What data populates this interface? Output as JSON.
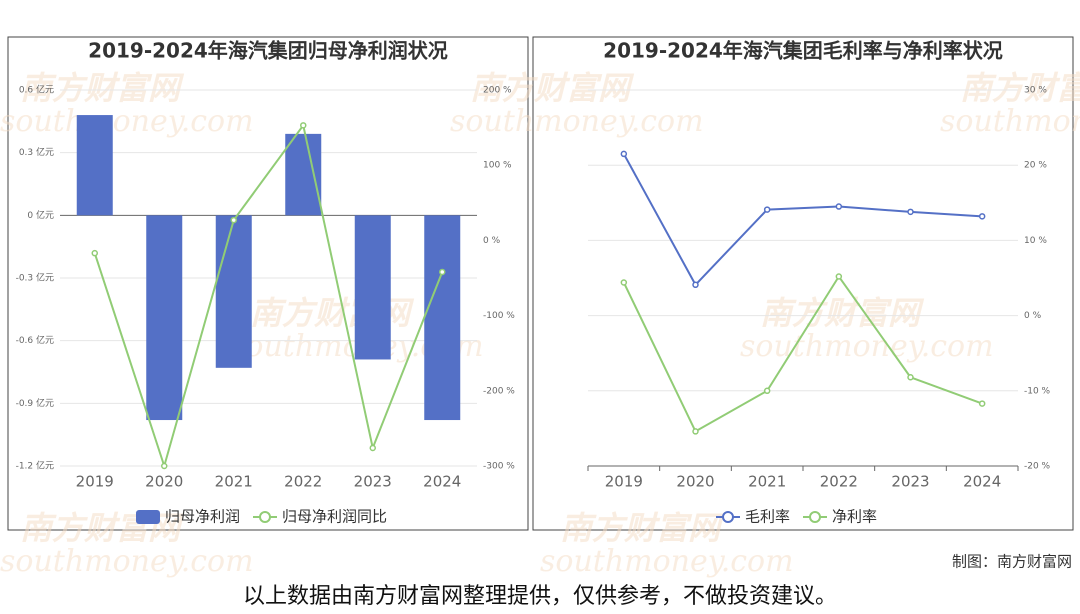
{
  "chart_data": [
    {
      "type": "bar",
      "title": "2019-2024年海汽集团归母净利润状况",
      "categories": [
        "2019",
        "2020",
        "2021",
        "2022",
        "2023",
        "2024"
      ],
      "series": [
        {
          "name": "归母净利润",
          "type": "bar",
          "color": "#5470c6",
          "values": [
            0.48,
            -0.98,
            -0.73,
            0.39,
            -0.69,
            -0.98
          ]
        },
        {
          "name": "归母净利润同比",
          "type": "line",
          "axis": "y2",
          "color": "#91cc75",
          "values": [
            -17,
            -300,
            27,
            153,
            -276,
            -42
          ]
        }
      ],
      "ylim": [
        -1.2,
        0.6
      ],
      "yticks": [
        {
          "value": 0.6,
          "label": "0.6 亿元"
        },
        {
          "value": 0.3,
          "label": "0.3 亿元"
        },
        {
          "value": 0,
          "label": "0 亿元"
        },
        {
          "value": -0.3,
          "label": "-0.3 亿元"
        },
        {
          "value": -0.6,
          "label": "-0.6 亿元"
        },
        {
          "value": -0.9,
          "label": "-0.9 亿元"
        },
        {
          "value": -1.2,
          "label": "-1.2 亿元"
        }
      ],
      "y2lim": [
        -300,
        200
      ],
      "y2ticks": [
        {
          "value": 200,
          "label": "200 %"
        },
        {
          "value": 100,
          "label": "100 %"
        },
        {
          "value": 0,
          "label": "0 %"
        },
        {
          "value": -100,
          "label": "-100 %"
        },
        {
          "value": -200,
          "label": "-200 %"
        },
        {
          "value": -300,
          "label": "-300 %"
        }
      ],
      "grid": true,
      "legend": "bottom"
    },
    {
      "type": "line",
      "title": "2019-2024年海汽集团毛利率与净利率状况",
      "categories": [
        "2019",
        "2020",
        "2021",
        "2022",
        "2023",
        "2024"
      ],
      "series": [
        {
          "name": "毛利率",
          "color": "#5470c6",
          "values": [
            21.5,
            4.1,
            14.1,
            14.5,
            13.8,
            13.2
          ]
        },
        {
          "name": "净利率",
          "color": "#91cc75",
          "values": [
            4.4,
            -15.4,
            -10.0,
            5.2,
            -8.2,
            -11.7
          ]
        }
      ],
      "ylim": [
        -20,
        30
      ],
      "yticks": [
        {
          "value": 30,
          "label": "30 %"
        },
        {
          "value": 20,
          "label": "20 %"
        },
        {
          "value": 10,
          "label": "10 %"
        },
        {
          "value": 0,
          "label": "0 %"
        },
        {
          "value": -10,
          "label": "-10 %"
        },
        {
          "value": -20,
          "label": "-20 %"
        }
      ],
      "yaxis_position": "right",
      "grid": true,
      "legend": "bottom"
    }
  ],
  "watermark": [
    "南方财富网",
    "southmoney.com"
  ],
  "credit": "制图：南方财富网",
  "footnote": "以上数据由南方财富网整理提供，仅供参考，不做投资建议。"
}
